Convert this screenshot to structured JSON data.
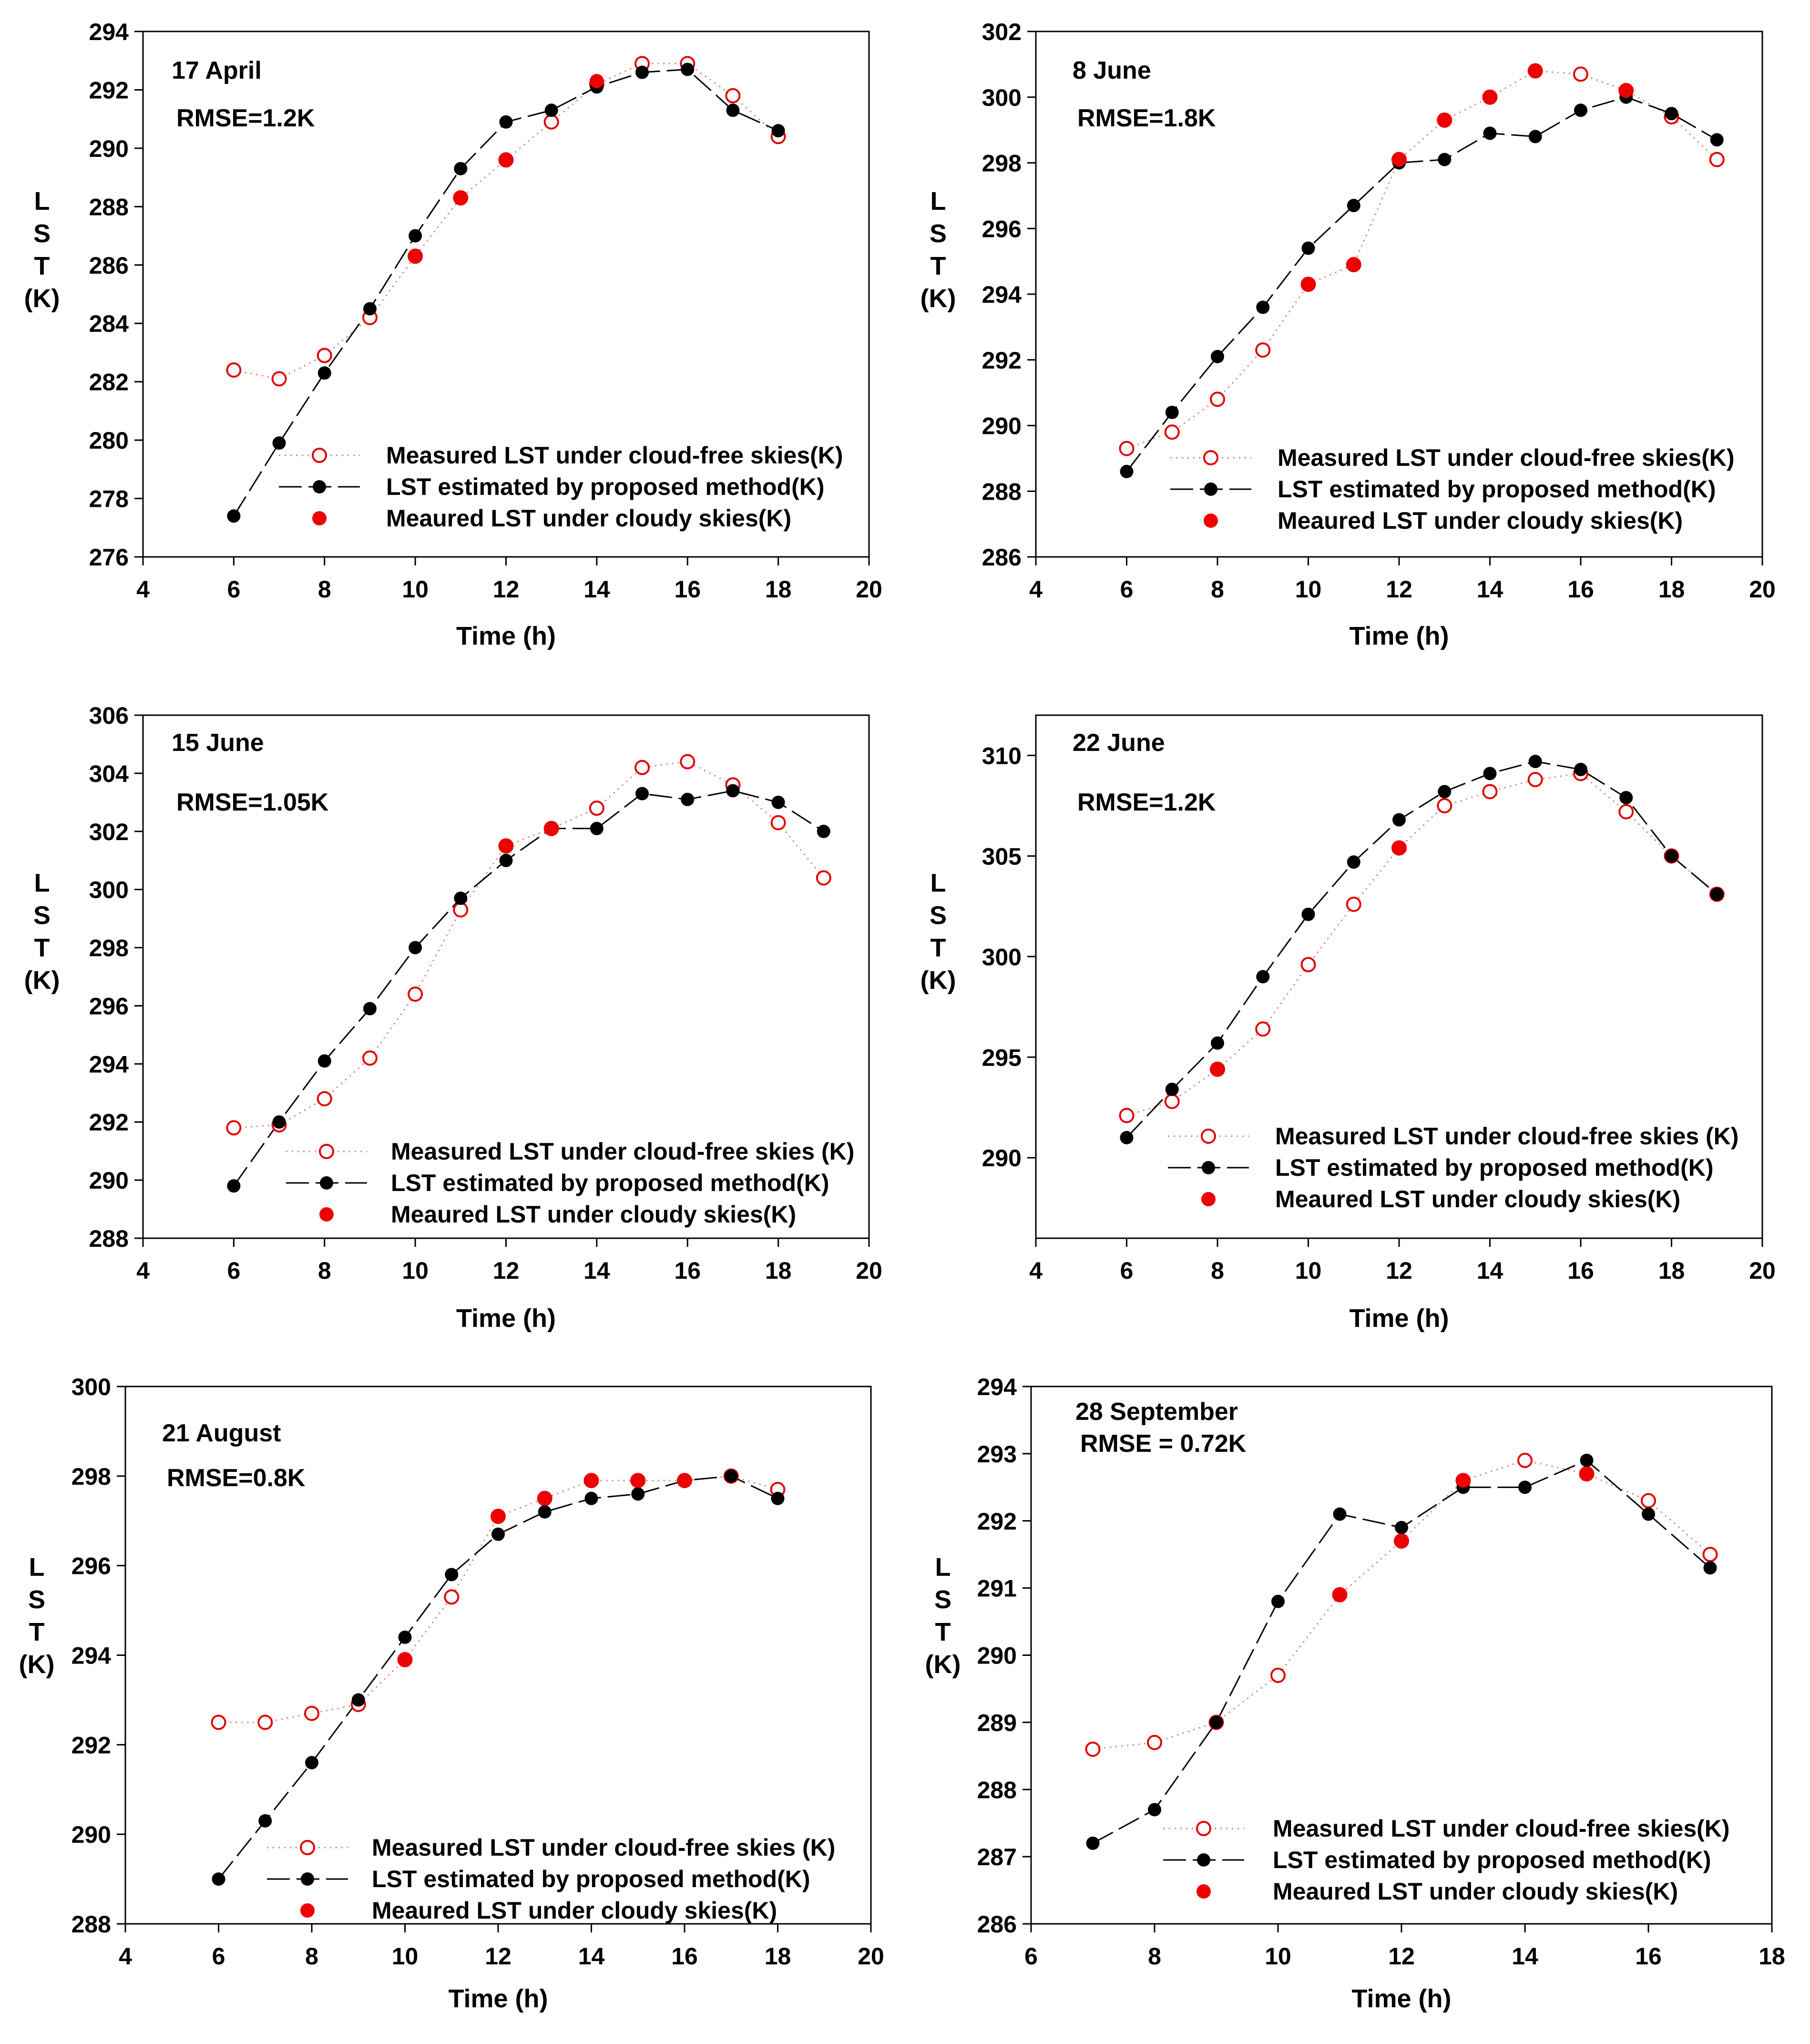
{
  "chart_data": [
    {
      "type": "line",
      "title": "",
      "date_label": "17 April",
      "rmse_label": "RMSE=1.2K",
      "xlabel": "Time (h)",
      "ylabel": [
        "L",
        "S",
        "T",
        "(K)"
      ],
      "xlim": [
        4,
        20
      ],
      "ylim": [
        276,
        294
      ],
      "xticks": [
        4,
        6,
        8,
        10,
        12,
        14,
        16,
        18,
        20
      ],
      "yticks": [
        276,
        278,
        280,
        282,
        284,
        286,
        288,
        290,
        292,
        294
      ],
      "legend": [
        "Measured LST under cloud-free skies(K)",
        "LST estimated by proposed method(K)",
        "Meaured LST under cloudy skies(K)"
      ],
      "series": [
        {
          "name": "Measured LST under cloud-free skies(K)",
          "style": "open-circle-dotted",
          "x": [
            6,
            7,
            8,
            9,
            10,
            11,
            12,
            13,
            14,
            15,
            16,
            17,
            18
          ],
          "y": [
            282.4,
            282.1,
            282.9,
            284.2,
            286.3,
            288.3,
            289.6,
            290.9,
            292.2,
            292.9,
            292.9,
            291.8,
            290.4
          ]
        },
        {
          "name": "LST estimated by proposed method(K)",
          "style": "filled-black-dashed",
          "x": [
            6,
            7,
            8,
            9,
            10,
            11,
            12,
            13,
            14,
            15,
            16,
            17,
            18
          ],
          "y": [
            277.4,
            279.9,
            282.3,
            284.5,
            287.0,
            289.3,
            290.9,
            291.3,
            292.1,
            292.6,
            292.7,
            291.3,
            290.6
          ]
        },
        {
          "name": "Meaured LST under cloudy skies(K)",
          "style": "filled-red",
          "x": [
            10,
            11,
            12,
            14
          ],
          "y": [
            286.3,
            288.3,
            289.6,
            292.3
          ]
        }
      ]
    },
    {
      "type": "line",
      "title": "",
      "date_label": "8 June",
      "rmse_label": "RMSE=1.8K",
      "xlabel": "Time (h)",
      "ylabel": [
        "L",
        "S",
        "T",
        "(K)"
      ],
      "xlim": [
        4,
        20
      ],
      "ylim": [
        286,
        302
      ],
      "xticks": [
        4,
        6,
        8,
        10,
        12,
        14,
        16,
        18,
        20
      ],
      "yticks": [
        286,
        288,
        290,
        292,
        294,
        296,
        298,
        300,
        302
      ],
      "legend": [
        "Measured LST under cloud-free skies(K)",
        "LST estimated by proposed method(K)",
        "Meaured LST under cloudy skies(K)"
      ],
      "series": [
        {
          "name": "Measured LST under cloud-free skies(K)",
          "style": "open-circle-dotted",
          "x": [
            6,
            7,
            8,
            9,
            10,
            11,
            12,
            13,
            14,
            15,
            16,
            17,
            18,
            19
          ],
          "y": [
            289.3,
            289.8,
            290.8,
            292.3,
            294.3,
            294.9,
            298.1,
            299.3,
            300.0,
            300.8,
            300.7,
            300.2,
            299.4,
            298.1
          ]
        },
        {
          "name": "LST estimated by proposed method(K)",
          "style": "filled-black-dashed",
          "x": [
            6,
            7,
            8,
            9,
            10,
            11,
            12,
            13,
            14,
            15,
            16,
            17,
            18,
            19
          ],
          "y": [
            288.6,
            290.4,
            292.1,
            293.6,
            295.4,
            296.7,
            298.0,
            298.1,
            298.9,
            298.8,
            299.6,
            300.0,
            299.5,
            298.7
          ]
        },
        {
          "name": "Meaured LST under cloudy skies(K)",
          "style": "filled-red",
          "x": [
            10,
            11,
            12,
            13,
            14,
            15,
            17
          ],
          "y": [
            294.3,
            294.9,
            298.1,
            299.3,
            300.0,
            300.8,
            300.2
          ]
        }
      ]
    },
    {
      "type": "line",
      "title": "",
      "date_label": "15 June",
      "rmse_label": "RMSE=1.05K",
      "xlabel": "Time (h)",
      "ylabel": [
        "L",
        "S",
        "T",
        "(K)"
      ],
      "xlim": [
        4,
        20
      ],
      "ylim": [
        288,
        306
      ],
      "xticks": [
        4,
        6,
        8,
        10,
        12,
        14,
        16,
        18,
        20
      ],
      "yticks": [
        288,
        290,
        292,
        294,
        296,
        298,
        300,
        302,
        304,
        306
      ],
      "legend": [
        "Measured LST under cloud-free skies (K)",
        "LST estimated by proposed method(K)",
        "Meaured LST under cloudy skies(K)"
      ],
      "series": [
        {
          "name": "Measured LST under cloud-free skies (K)",
          "style": "open-circle-dotted",
          "x": [
            6,
            7,
            8,
            9,
            10,
            11,
            12,
            13,
            14,
            15,
            16,
            17,
            18,
            19
          ],
          "y": [
            291.8,
            291.9,
            292.8,
            294.2,
            296.4,
            299.3,
            301.5,
            302.1,
            302.8,
            304.2,
            304.4,
            303.6,
            302.3,
            300.4
          ]
        },
        {
          "name": "LST estimated by proposed method(K)",
          "style": "filled-black-dashed",
          "x": [
            6,
            7,
            8,
            9,
            10,
            11,
            12,
            13,
            14,
            15,
            16,
            17,
            18,
            19
          ],
          "y": [
            289.8,
            292.0,
            294.1,
            295.9,
            298.0,
            299.7,
            301.0,
            302.1,
            302.1,
            303.3,
            303.1,
            303.4,
            303.0,
            302.0
          ]
        },
        {
          "name": "Meaured LST under cloudy skies(K)",
          "style": "filled-red",
          "x": [
            12,
            13
          ],
          "y": [
            301.5,
            302.1
          ]
        }
      ]
    },
    {
      "type": "line",
      "title": "",
      "date_label": "22 June",
      "rmse_label": "RMSE=1.2K",
      "xlabel": "Time (h)",
      "ylabel": [
        "L",
        "S",
        "T",
        "(K)"
      ],
      "xlim": [
        4,
        20
      ],
      "ylim": [
        286,
        312
      ],
      "xticks": [
        4,
        6,
        8,
        10,
        12,
        14,
        16,
        18,
        20
      ],
      "yticks": [
        290,
        295,
        300,
        305,
        310
      ],
      "legend": [
        "Measured LST under cloud-free skies (K)",
        "LST estimated by proposed method(K)",
        "Meaured LST under cloudy skies(K)"
      ],
      "series": [
        {
          "name": "Measured LST under cloud-free skies (K)",
          "style": "open-circle-dotted",
          "x": [
            6,
            7,
            8,
            9,
            10,
            11,
            12,
            13,
            14,
            15,
            16,
            17,
            18,
            19
          ],
          "y": [
            292.1,
            292.8,
            294.4,
            296.4,
            299.6,
            302.6,
            305.4,
            307.5,
            308.2,
            308.8,
            309.1,
            307.2,
            305.0,
            303.1
          ]
        },
        {
          "name": "LST estimated by proposed method(K)",
          "style": "filled-black-dashed",
          "x": [
            6,
            7,
            8,
            9,
            10,
            11,
            12,
            13,
            14,
            15,
            16,
            17,
            18,
            19
          ],
          "y": [
            291.0,
            293.4,
            295.7,
            299.0,
            302.1,
            304.7,
            306.8,
            308.2,
            309.1,
            309.7,
            309.3,
            307.9,
            305.0,
            303.1
          ]
        },
        {
          "name": "Meaured LST under cloudy skies(K)",
          "style": "filled-red",
          "x": [
            8,
            12
          ],
          "y": [
            294.4,
            305.4
          ]
        }
      ]
    },
    {
      "type": "line",
      "title": "",
      "date_label": "21 August",
      "rmse_label": "RMSE=0.8K",
      "xlabel": "Time (h)",
      "ylabel": [
        "L",
        "S",
        "T",
        "(K)"
      ],
      "xlim": [
        4,
        20
      ],
      "ylim": [
        288,
        300
      ],
      "xticks": [
        4,
        6,
        8,
        10,
        12,
        14,
        16,
        18,
        20
      ],
      "yticks": [
        288,
        290,
        292,
        294,
        296,
        298,
        300
      ],
      "legend": [
        "Measured LST under cloud-free skies (K)",
        "LST estimated by proposed method(K)",
        "Meaured LST under cloudy skies(K)"
      ],
      "series": [
        {
          "name": "Measured LST under cloud-free skies (K)",
          "style": "open-circle-dotted",
          "x": [
            6,
            7,
            8,
            9,
            10,
            11,
            12,
            13,
            14,
            15,
            16,
            17,
            18
          ],
          "y": [
            292.5,
            292.5,
            292.7,
            292.9,
            293.9,
            295.3,
            297.1,
            297.5,
            297.9,
            297.9,
            297.9,
            298.0,
            297.7
          ]
        },
        {
          "name": "LST estimated by proposed method(K)",
          "style": "filled-black-dashed",
          "x": [
            6,
            7,
            8,
            9,
            10,
            11,
            12,
            13,
            14,
            15,
            16,
            17,
            18
          ],
          "y": [
            289.0,
            290.3,
            291.6,
            293.0,
            294.4,
            295.8,
            296.7,
            297.2,
            297.5,
            297.6,
            297.9,
            298.0,
            297.5
          ]
        },
        {
          "name": "Meaured LST under cloudy skies(K)",
          "style": "filled-red",
          "x": [
            10,
            12,
            13,
            14,
            15,
            16
          ],
          "y": [
            293.9,
            297.1,
            297.5,
            297.9,
            297.9,
            297.9
          ]
        }
      ]
    },
    {
      "type": "line",
      "title": "",
      "date_label": "28 September",
      "rmse_label": "RMSE = 0.72K",
      "xlabel": "Time (h)",
      "ylabel": [
        "L",
        "S",
        "T",
        "(K)"
      ],
      "xlim": [
        6,
        18
      ],
      "ylim": [
        286,
        294
      ],
      "xticks": [
        6,
        8,
        10,
        12,
        14,
        16,
        18
      ],
      "yticks": [
        286,
        287,
        288,
        289,
        290,
        291,
        292,
        293,
        294
      ],
      "legend": [
        "Measured LST under cloud-free skies(K)",
        "LST estimated by proposed method(K)",
        "Meaured LST under cloudy skies(K)"
      ],
      "series": [
        {
          "name": "Measured LST under cloud-free skies(K)",
          "style": "open-circle-dotted",
          "x": [
            7,
            8,
            9,
            10,
            11,
            12,
            13,
            14,
            15,
            16,
            17
          ],
          "y": [
            288.6,
            288.7,
            289.0,
            289.7,
            290.9,
            291.7,
            292.6,
            292.9,
            292.7,
            292.3,
            291.5
          ]
        },
        {
          "name": "LST estimated by proposed method(K)",
          "style": "filled-black-dashed",
          "x": [
            7,
            8,
            9,
            10,
            11,
            12,
            13,
            14,
            15,
            16,
            17
          ],
          "y": [
            287.2,
            287.7,
            289.0,
            290.8,
            292.1,
            291.9,
            292.5,
            292.5,
            292.9,
            292.1,
            291.3
          ]
        },
        {
          "name": "Meaured LST under cloudy skies(K)",
          "style": "filled-red",
          "x": [
            11,
            12,
            13,
            15
          ],
          "y": [
            290.9,
            291.7,
            292.6,
            292.7
          ]
        }
      ]
    }
  ]
}
